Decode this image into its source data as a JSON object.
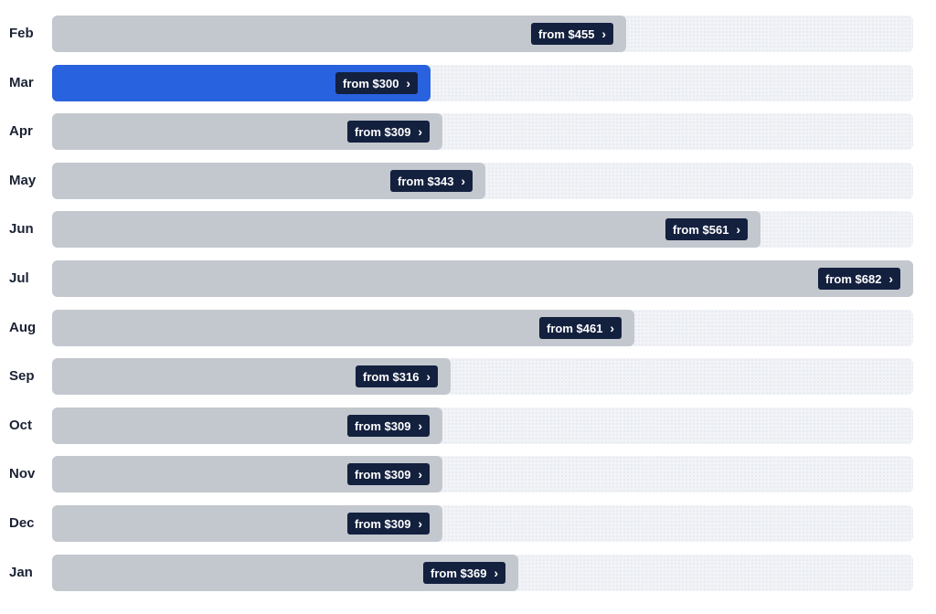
{
  "chart_data": {
    "type": "bar",
    "orientation": "horizontal",
    "categories": [
      "Feb",
      "Mar",
      "Apr",
      "May",
      "Jun",
      "Jul",
      "Aug",
      "Sep",
      "Oct",
      "Nov",
      "Dec",
      "Jan"
    ],
    "values": [
      455,
      300,
      309,
      343,
      561,
      682,
      461,
      316,
      309,
      309,
      309,
      369
    ],
    "labels": [
      "from $455",
      "from $300",
      "from $309",
      "from $343",
      "from $561",
      "from $682",
      "from $461",
      "from $316",
      "from $309",
      "from $309",
      "from $309",
      "from $369"
    ],
    "highlighted": "Mar",
    "xlim": [
      0,
      682
    ],
    "grid": false,
    "colors": {
      "bar": "#c3c7ce",
      "highlight": "#2962de",
      "track": "#f1f3f7",
      "tag_background": "#13203e",
      "tag_text": "#ffffff",
      "month_text": "#1a2233"
    },
    "icon": "chevron-right-icon"
  }
}
